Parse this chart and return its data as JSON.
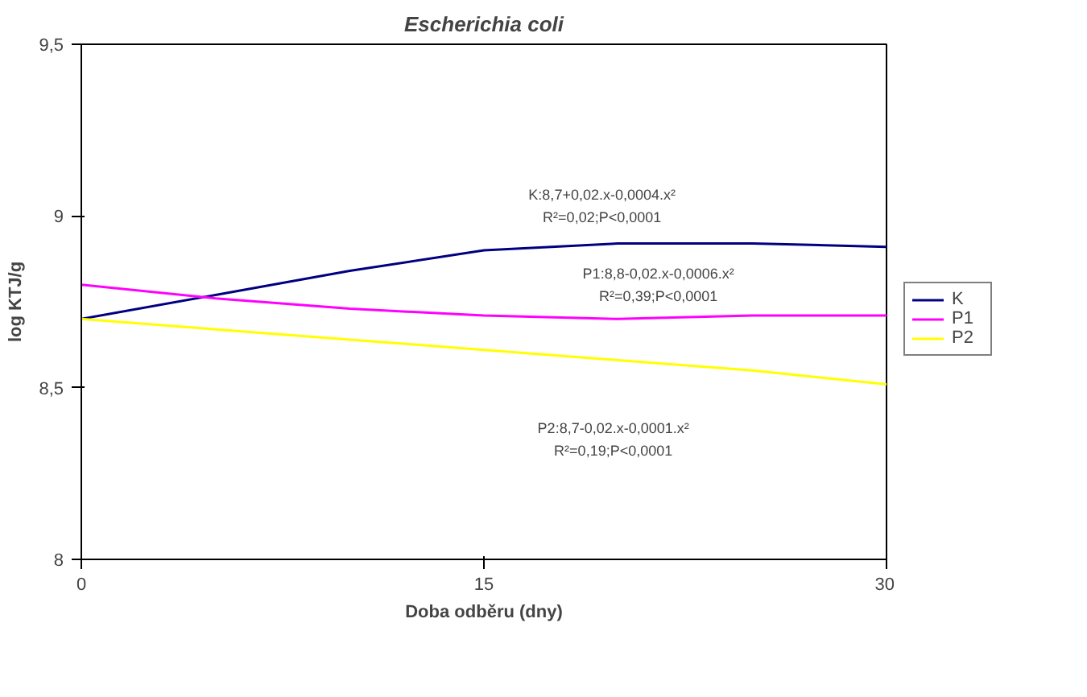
{
  "chart_data": {
    "type": "line",
    "title": "Escherichia coli",
    "xlabel": "Doba odběru (dny)",
    "ylabel": "log KTJ/g",
    "x": [
      0,
      5,
      10,
      15,
      20,
      25,
      30
    ],
    "series": [
      {
        "name": "K",
        "color": "#000080",
        "values": [
          8.7,
          8.77,
          8.84,
          8.9,
          8.92,
          8.92,
          8.91
        ]
      },
      {
        "name": "P1",
        "color": "#ff00ff",
        "values": [
          8.8,
          8.76,
          8.73,
          8.71,
          8.7,
          8.71,
          8.71
        ]
      },
      {
        "name": "P2",
        "color": "#ffff00",
        "values": [
          8.7,
          8.67,
          8.64,
          8.61,
          8.58,
          8.55,
          8.51
        ]
      }
    ],
    "xlim": [
      0,
      30
    ],
    "xticks": [
      0,
      15,
      30
    ],
    "ylim": [
      8,
      9.5
    ],
    "yticks": [
      8,
      {
        "value": 8.5,
        "label": "8,5"
      },
      9,
      {
        "value": 9.5,
        "label": "9,5"
      }
    ],
    "annotations": [
      "K:8,7+0,02.x-0,0004.x²",
      "R²=0,02;P<0,0001",
      "P1:8,8-0,02.x-0,0006.x²",
      "R²=0,39;P<0,0001",
      "P2:8,7-0,02.x-0,0001.x²",
      "R²=0,19;P<0,0001"
    ],
    "legend": "right",
    "grid": false,
    "marker": "none",
    "line_style": "solid"
  }
}
